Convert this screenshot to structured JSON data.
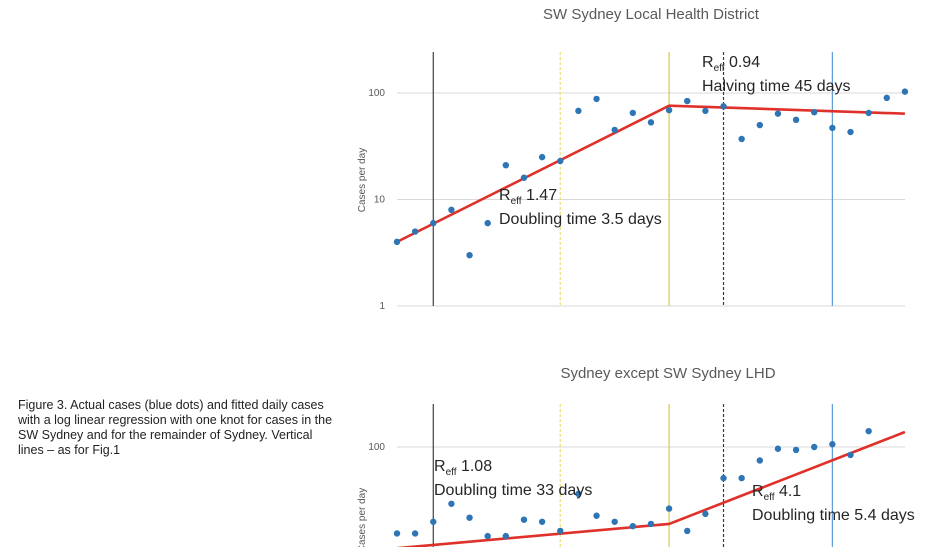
{
  "caption": "Figure 3. Actual cases (blue dots) and fitted daily cases with a log linear regression with one knot for cases in the SW Sydney and for the remainder of Sydney. Vertical lines – as for Fig.1",
  "colors": {
    "dots": "#2e75b6",
    "fit": "#e0302a",
    "grid": "#d9d9d9"
  },
  "chart_data": [
    {
      "type": "scatter",
      "title": "SW Sydney Local Health District",
      "ylabel": "Cases per day",
      "yscale": "log",
      "ylim": [
        1,
        200
      ],
      "yticks": [
        "1",
        "10",
        "100"
      ],
      "points": [
        4,
        5,
        6,
        8,
        3,
        6,
        21,
        16,
        25,
        23,
        68,
        88,
        45,
        65,
        53,
        69,
        84,
        68,
        75,
        37,
        50,
        64,
        56,
        66,
        47,
        43,
        65,
        90,
        103
      ],
      "fit": [
        [
          0,
          4
        ],
        [
          15,
          76
        ],
        [
          28,
          64
        ]
      ],
      "vlines": [
        {
          "x": 2,
          "color": "#404040",
          "dash": ""
        },
        {
          "x": 9,
          "color": "#e8e07a",
          "dash": "3,2"
        },
        {
          "x": 15,
          "color": "#e0c84a",
          "dash": ""
        },
        {
          "x": 18,
          "color": "#2b3a55",
          "dash": "3,2"
        },
        {
          "x": 24,
          "color": "#5b9bd5",
          "dash": ""
        }
      ],
      "annotations": [
        {
          "sub": "eff",
          "value": "1.47",
          "line2": "Doubling time 3.5 days"
        },
        {
          "sub": "eff",
          "value": "0.94",
          "line2": "Halving time 45 days"
        }
      ]
    },
    {
      "type": "scatter",
      "title": "Sydney except SW Sydney LHD",
      "ylabel": "Cases per day",
      "yscale": "log",
      "ylim": [
        10,
        200
      ],
      "yticks": [
        "100"
      ],
      "points": [
        22,
        22,
        27,
        37,
        29,
        21,
        21,
        28,
        27,
        23,
        44,
        30,
        27,
        25,
        26,
        34,
        23,
        31,
        58,
        58,
        79,
        97,
        95,
        100,
        105,
        87,
        132
      ],
      "fit": [
        [
          0,
          17
        ],
        [
          15,
          26
        ],
        [
          28,
          130
        ]
      ],
      "vlines": [
        {
          "x": 2,
          "color": "#404040",
          "dash": ""
        },
        {
          "x": 9,
          "color": "#e8e07a",
          "dash": "3,2"
        },
        {
          "x": 15,
          "color": "#e0c84a",
          "dash": ""
        },
        {
          "x": 18,
          "color": "#2b3a55",
          "dash": "3,2"
        },
        {
          "x": 24,
          "color": "#5b9bd5",
          "dash": ""
        }
      ],
      "annotations": [
        {
          "sub": "eff",
          "value": "1.08",
          "line2": "Doubling time 33 days"
        },
        {
          "sub": "eff",
          "value": "4.1",
          "line2": "Doubling time 5.4 days"
        }
      ]
    }
  ]
}
